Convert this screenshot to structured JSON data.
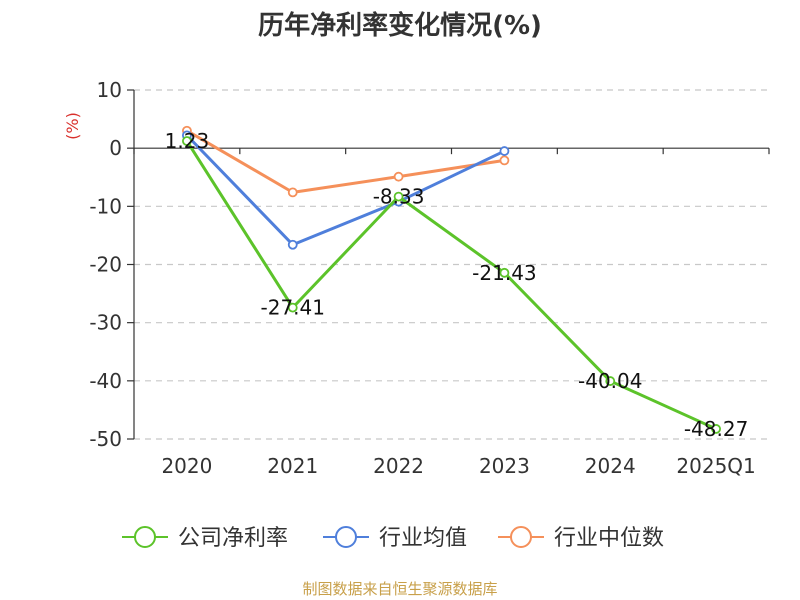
{
  "chart_data": {
    "type": "line",
    "title": "历年净利率变化情况(%)",
    "ylabel": "(%)",
    "categories": [
      "2020",
      "2021",
      "2022",
      "2023",
      "2024",
      "2025Q1"
    ],
    "ylim": [
      -50,
      10
    ],
    "yticks": [
      "10",
      "0",
      "-10",
      "-20",
      "-30",
      "-40",
      "-50"
    ],
    "ytick_values": [
      10,
      0,
      -10,
      -20,
      -30,
      -40,
      -50
    ],
    "grid": true,
    "legend_position": "bottom",
    "series": [
      {
        "name": "公司净利率",
        "color": "#5cc32a",
        "values": [
          1.23,
          -27.41,
          -8.33,
          -21.43,
          -40.04,
          -48.27
        ],
        "labels": [
          "1.23",
          "-27.41",
          "-8.33",
          "-21.43",
          "-40.04",
          "-48.27"
        ]
      },
      {
        "name": "行业均值",
        "color": "#4f7fdb",
        "values": [
          2.2,
          -16.6,
          -9.2,
          -0.5,
          null,
          null
        ]
      },
      {
        "name": "行业中位数",
        "color": "#f5905a",
        "values": [
          3.0,
          -7.6,
          -4.9,
          -2.1,
          null,
          null
        ]
      }
    ],
    "source": "制图数据来自恒生聚源数据库"
  }
}
